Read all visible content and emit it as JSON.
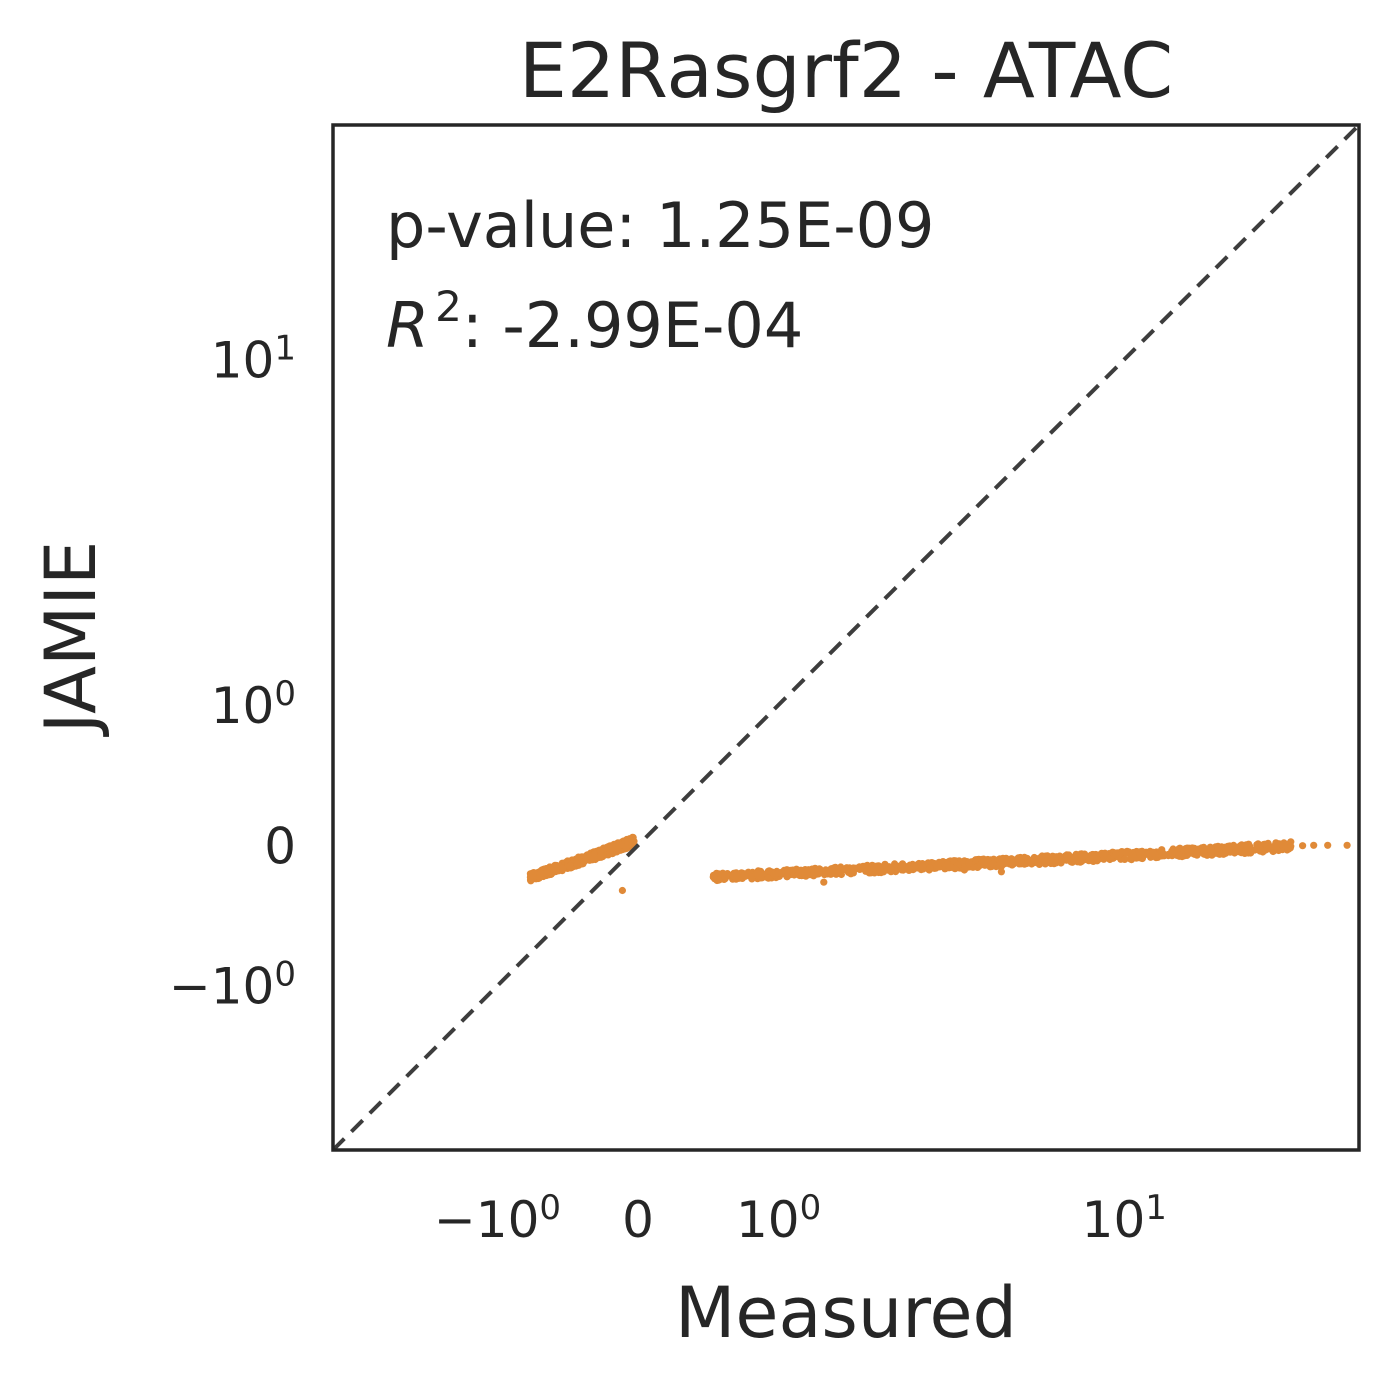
{
  "chart_data": {
    "type": "scatter",
    "title": "E2Rasgrf2 - ATAC",
    "xlabel": "Measured",
    "ylabel": "JAMIE",
    "xscale": "symlog",
    "yscale": "symlog",
    "xlim": [
      -3.5,
      34
    ],
    "ylim": [
      -3.5,
      34
    ],
    "grid": false,
    "legend": "none",
    "colors": {
      "points": "#e08a38",
      "reference_line": "#3d3d3d",
      "frame": "#262626",
      "text": "#262626"
    },
    "x_ticks": [
      {
        "value": -1,
        "base": "−10",
        "exp": "0"
      },
      {
        "value": 0,
        "base": "0",
        "exp": ""
      },
      {
        "value": 1,
        "base": "10",
        "exp": "0"
      },
      {
        "value": 10,
        "base": "10",
        "exp": "1"
      }
    ],
    "y_ticks": [
      {
        "value": 10,
        "base": "10",
        "exp": "1"
      },
      {
        "value": 1,
        "base": "10",
        "exp": "0"
      },
      {
        "value": 0,
        "base": "0",
        "exp": ""
      },
      {
        "value": -1,
        "base": "−10",
        "exp": "0"
      }
    ],
    "reference_line": {
      "from": [
        -3.5,
        -3.5
      ],
      "to": [
        34,
        34
      ],
      "style": "dashed"
    },
    "annotations": {
      "pvalue_text": "p-value: 1.25E-09",
      "r2_symbol": "R",
      "r2_exp": "2",
      "r2_value": ": -2.99E-04"
    },
    "series": [
      {
        "trend_segments": [
          {
            "x0": -0.7,
            "x1": -0.02,
            "y_at_x0": -0.17,
            "y_at_x1": 0.02
          },
          {
            "x0": 0.45,
            "x1": 24,
            "y_at_x0": -0.17,
            "y_at_x1": -0.005
          }
        ],
        "points": [
          [
            -0.7,
            -0.17
          ],
          [
            -0.62,
            -0.15
          ],
          [
            -0.55,
            -0.14
          ],
          [
            -0.5,
            -0.13
          ],
          [
            -0.45,
            -0.12
          ],
          [
            -0.4,
            -0.11
          ],
          [
            -0.35,
            -0.1
          ],
          [
            -0.3,
            -0.08
          ],
          [
            -0.25,
            -0.07
          ],
          [
            -0.2,
            -0.055
          ],
          [
            -0.15,
            -0.04
          ],
          [
            -0.1,
            -0.025
          ],
          [
            -0.06,
            -0.01
          ],
          [
            -0.03,
            0.0
          ],
          [
            -0.02,
            0.02
          ],
          [
            -0.08,
            -0.25
          ],
          [
            0.45,
            -0.17
          ],
          [
            0.6,
            -0.16
          ],
          [
            0.8,
            -0.15
          ],
          [
            1.0,
            -0.145
          ],
          [
            1.3,
            -0.14
          ],
          [
            1.7,
            -0.13
          ],
          [
            2.2,
            -0.12
          ],
          [
            2.9,
            -0.11
          ],
          [
            3.6,
            -0.1
          ],
          [
            4.5,
            -0.085
          ],
          [
            5.5,
            -0.07
          ],
          [
            7.0,
            -0.055
          ],
          [
            9.0,
            -0.04
          ],
          [
            11.0,
            -0.03
          ],
          [
            14.0,
            -0.02
          ],
          [
            18.0,
            -0.01
          ],
          [
            22.0,
            -0.005
          ],
          [
            24.0,
            -0.005
          ],
          [
            1.5,
            -0.2
          ],
          [
            5.0,
            -0.14
          ],
          [
            4.0,
            -0.13
          ],
          [
            6.5,
            -0.09
          ],
          [
            25.5,
            -0.002
          ],
          [
            27.0,
            0.0
          ],
          [
            29.0,
            0.0
          ],
          [
            32.0,
            0.0
          ]
        ]
      }
    ]
  }
}
